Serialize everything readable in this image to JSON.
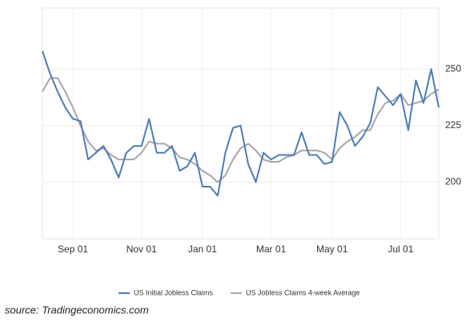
{
  "chart_data": {
    "type": "line",
    "categories": [
      null,
      null,
      null,
      null,
      "Sep 01",
      null,
      null,
      null,
      null,
      null,
      null,
      null,
      null,
      "Nov 01",
      null,
      null,
      null,
      null,
      null,
      null,
      null,
      "Jan 01",
      null,
      null,
      null,
      null,
      null,
      null,
      null,
      null,
      "Mar 01",
      null,
      null,
      null,
      null,
      null,
      null,
      null,
      "May 01",
      null,
      null,
      null,
      null,
      null,
      null,
      null,
      null,
      "Jul 01",
      null,
      null,
      null,
      null,
      null
    ],
    "series": [
      {
        "name": "US Initial Jobless Claims",
        "color": "#4a7bb5",
        "values": [
          258,
          248,
          240,
          233,
          228,
          227,
          210,
          213,
          216,
          210,
          202,
          213,
          216,
          216,
          228,
          213,
          213,
          216,
          205,
          207,
          213,
          198,
          198,
          194,
          213,
          224,
          225,
          208,
          200,
          213,
          210,
          212,
          212,
          212,
          222,
          212,
          212,
          208,
          209,
          231,
          225,
          216,
          220,
          226,
          242,
          238,
          234,
          239,
          223,
          245,
          235,
          250,
          233
        ]
      },
      {
        "name": "US Jobless Claims 4-week Average",
        "color": "#a6a6a6",
        "values": [
          240,
          246,
          246,
          240,
          233,
          225,
          218,
          214,
          215,
          212,
          210,
          210,
          210,
          213,
          218,
          217,
          217,
          215,
          211,
          210,
          208,
          205,
          203,
          200,
          203,
          210,
          215,
          217,
          214,
          210,
          209,
          209,
          211,
          212,
          214,
          214,
          214,
          213,
          210,
          215,
          218,
          220,
          223,
          223,
          230,
          235,
          236,
          239,
          234,
          235,
          236,
          239,
          241
        ]
      }
    ],
    "ylim": [
      175,
      277
    ],
    "yticks": [
      200,
      225,
      250
    ],
    "grid": true,
    "legend": "bottom",
    "source": "source: Tradingeconomics.com"
  }
}
